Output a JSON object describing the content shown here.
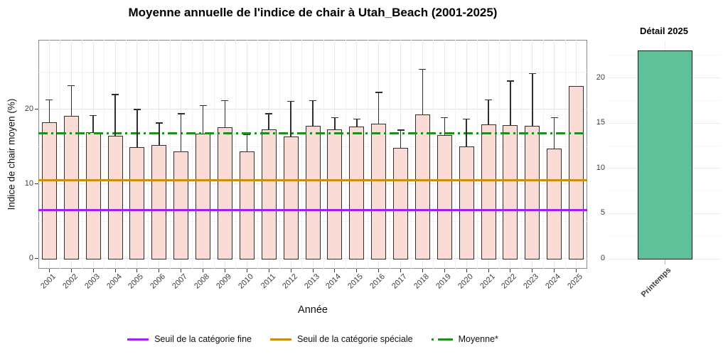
{
  "chart_data": [
    {
      "id": "main",
      "type": "bar",
      "title": "Moyenne annuelle de l'indice de chair à Utah_Beach (2001-2025)",
      "xlabel": "Année",
      "ylabel": "Indice de chair moyen (%)",
      "categories": [
        "2001",
        "2002",
        "2003",
        "2004",
        "2005",
        "2006",
        "2007",
        "2008",
        "2009",
        "2010",
        "2011",
        "2012",
        "2013",
        "2014",
        "2015",
        "2016",
        "2017",
        "2018",
        "2019",
        "2020",
        "2021",
        "2022",
        "2023",
        "2024",
        "2025"
      ],
      "values": [
        18.3,
        19.1,
        16.9,
        16.5,
        14.9,
        15.2,
        14.4,
        16.7,
        17.6,
        14.4,
        17.3,
        16.4,
        17.8,
        17.3,
        17.7,
        18.1,
        14.8,
        19.3,
        16.6,
        15.0,
        18.0,
        17.9,
        17.8,
        14.7,
        23.1
      ],
      "error_high": [
        21.3,
        23.2,
        19.2,
        22.0,
        20.0,
        18.2,
        19.4,
        20.5,
        21.2,
        16.6,
        19.4,
        21.1,
        21.2,
        18.9,
        18.7,
        22.3,
        17.2,
        25.4,
        18.9,
        18.7,
        21.3,
        23.8,
        24.8,
        18.9,
        null
      ],
      "yticks": [
        0,
        10,
        20
      ],
      "ylim": [
        -1.3,
        29.3
      ],
      "grid": true,
      "legend_position": "bottom",
      "bar_fill": "#fadbd6",
      "bar_stroke": "#2e2e2e",
      "error_color": "#2e2e2e",
      "ref_lines": [
        {
          "name": "Seuil de la catégorie fine",
          "value": 6.5,
          "color": "#a020f0",
          "style": "solid"
        },
        {
          "name": "Seuil de la catégorie spéciale",
          "value": 10.5,
          "color": "#cc8e0d",
          "style": "solid"
        },
        {
          "name": "Moyenne*",
          "value": 16.8,
          "color": "#228b22",
          "style": "dashdot"
        }
      ]
    },
    {
      "id": "detail",
      "type": "bar",
      "title": "Détail 2025",
      "xlabel": "",
      "ylabel": "",
      "categories": [
        "Printemps"
      ],
      "values": [
        23.0
      ],
      "error_high": [
        null
      ],
      "yticks": [
        0,
        5,
        10,
        15,
        20
      ],
      "ylim": [
        -1.2,
        24
      ],
      "grid": true,
      "bar_fill": "#5fc099",
      "bar_stroke": "#1a1a1a"
    }
  ],
  "legend": {
    "items": [
      {
        "label": "Seuil de la catégorie fine",
        "color": "#a020f0",
        "style": "solid"
      },
      {
        "label": "Seuil de la catégorie spéciale",
        "color": "#cc8e0d",
        "style": "solid"
      },
      {
        "label": "Moyenne*",
        "color": "#228b22",
        "style": "dashdot"
      }
    ]
  }
}
